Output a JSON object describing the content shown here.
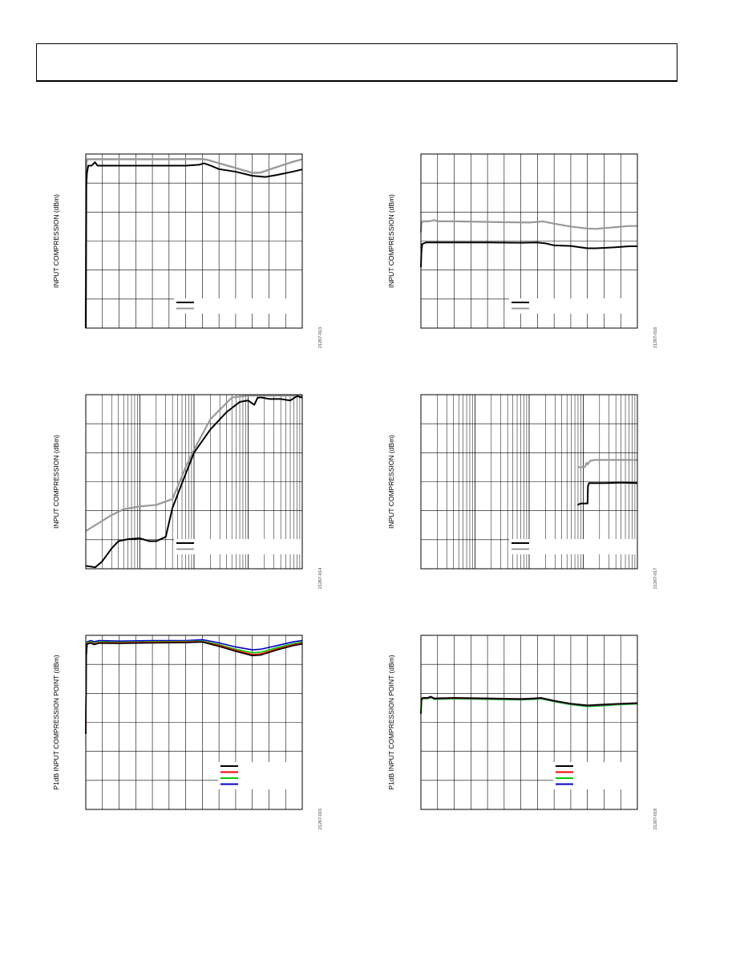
{
  "page": {
    "header_text": ""
  },
  "charts": [
    {
      "id": "c1",
      "figure_id": "21267-013",
      "ylabel": "INPUT COMPRESSION (dBm)",
      "chart_data": {
        "type": "line",
        "xscale": "linear",
        "grid": true,
        "x_divisions": 13,
        "y_divisions": 6,
        "xlim": [
          0,
          13
        ],
        "ylim": [
          0,
          6
        ],
        "legend": {
          "placement": "bottom-right",
          "colors": [
            "#000000",
            "#999999"
          ]
        },
        "series": [
          {
            "color": "#999999",
            "width": 2.4,
            "x": [
              0,
              0.03,
              0.08,
              0.4,
              1.5,
              3,
              5,
              6.9,
              7.3,
              7.9,
              9,
              10,
              10.5,
              11.3,
              12.5,
              13
            ],
            "y": [
              0,
              5.68,
              5.82,
              5.82,
              5.82,
              5.82,
              5.82,
              5.83,
              5.8,
              5.7,
              5.52,
              5.35,
              5.36,
              5.52,
              5.74,
              5.82
            ]
          },
          {
            "color": "#000000",
            "width": 2.0,
            "x": [
              0,
              0.03,
              0.07,
              0.15,
              0.35,
              0.55,
              0.7,
              0.9,
              1.5,
              3,
              5,
              6,
              6.8,
              7.1,
              7.5,
              8,
              9,
              10,
              10.8,
              11.5,
              12.5,
              13
            ],
            "y": [
              0,
              4.9,
              5.35,
              5.6,
              5.6,
              5.72,
              5.6,
              5.6,
              5.6,
              5.6,
              5.6,
              5.6,
              5.63,
              5.68,
              5.6,
              5.48,
              5.39,
              5.25,
              5.21,
              5.28,
              5.4,
              5.47
            ]
          }
        ]
      }
    },
    {
      "id": "c2",
      "figure_id": "21267-016",
      "ylabel": "INPUT COMPRESSION (dBm)",
      "chart_data": {
        "type": "line",
        "xscale": "linear",
        "grid": true,
        "x_divisions": 13,
        "y_divisions": 6,
        "xlim": [
          0,
          13
        ],
        "ylim": [
          0,
          6
        ],
        "legend": {
          "placement": "bottom-right",
          "colors": [
            "#000000",
            "#999999"
          ]
        },
        "series": [
          {
            "color": "#999999",
            "width": 2.2,
            "x": [
              0,
              0.03,
              0.1,
              0.5,
              0.8,
              1,
              2,
              4,
              5,
              6.5,
              7,
              7.3,
              8,
              9,
              10,
              10.5,
              11.5,
              12.5,
              13
            ],
            "y": [
              3.3,
              3.62,
              3.68,
              3.68,
              3.72,
              3.68,
              3.68,
              3.66,
              3.65,
              3.64,
              3.66,
              3.68,
              3.6,
              3.5,
              3.43,
              3.42,
              3.47,
              3.52,
              3.52
            ]
          },
          {
            "color": "#000000",
            "width": 2.0,
            "x": [
              0,
              0.03,
              0.08,
              0.3,
              0.8,
              2,
              4,
              6,
              7,
              7.5,
              8,
              9,
              10,
              10.5,
              11.5,
              12.5,
              13
            ],
            "y": [
              2.1,
              2.65,
              2.9,
              2.95,
              2.95,
              2.95,
              2.95,
              2.94,
              2.95,
              2.92,
              2.85,
              2.83,
              2.75,
              2.75,
              2.78,
              2.82,
              2.82
            ]
          }
        ]
      }
    },
    {
      "id": "c3",
      "figure_id": "21267-014",
      "ylabel": "INPUT COMPRESSION (dBm)",
      "chart_data": {
        "type": "line",
        "xscale": "log",
        "grid": true,
        "xlim": [
          1,
          10000
        ],
        "ylim": [
          0,
          6
        ],
        "y_divisions": 6,
        "legend": {
          "placement": "bottom-right",
          "colors": [
            "#000000",
            "#999999"
          ]
        },
        "series": [
          {
            "color": "#999999",
            "width": 2.2,
            "x": [
              1,
              3,
              5,
              10,
              20,
              40,
              70,
              100,
              200,
              500,
              1000,
              1500,
              2000,
              3000,
              5000,
              10000
            ],
            "y": [
              1.3,
              1.85,
              2.05,
              2.15,
              2.2,
              2.4,
              3.5,
              4.1,
              5.15,
              5.9,
              5.97,
              5.97,
              5.97,
              5.97,
              5.97,
              5.97
            ]
          },
          {
            "color": "#000000",
            "width": 2.0,
            "x": [
              1,
              1.5,
              2,
              3,
              4,
              6,
              10,
              15,
              20,
              30,
              40,
              60,
              100,
              200,
              400,
              700,
              1000,
              1300,
              1500,
              1800,
              2500,
              4000,
              6000,
              8000,
              10000
            ],
            "y": [
              0.1,
              0.05,
              0.25,
              0.7,
              0.95,
              1.02,
              1.05,
              0.95,
              0.95,
              1.1,
              2.1,
              2.95,
              4.0,
              4.8,
              5.4,
              5.75,
              5.8,
              5.65,
              5.9,
              5.9,
              5.85,
              5.85,
              5.8,
              5.95,
              5.9
            ]
          }
        ]
      }
    },
    {
      "id": "c4",
      "figure_id": "21267-017",
      "ylabel": "INPUT COMPRESSION (dBm)",
      "chart_data": {
        "type": "line",
        "xscale": "log",
        "grid": true,
        "xlim": [
          1,
          10000
        ],
        "ylim": [
          0,
          6
        ],
        "y_divisions": 6,
        "legend": {
          "placement": "bottom-right",
          "colors": [
            "#000000",
            "#999999"
          ]
        },
        "series": [
          {
            "color": "#999999",
            "width": 2.2,
            "x": [
              800,
              1050,
              1100,
              1150,
              1200,
              1350,
              1600,
              2500,
              5000,
              10000
            ],
            "y": [
              3.5,
              3.5,
              3.55,
              3.65,
              3.6,
              3.72,
              3.75,
              3.75,
              3.75,
              3.75
            ]
          },
          {
            "color": "#000000",
            "width": 2.0,
            "x": [
              780,
              900,
              1050,
              1200,
              1220,
              1280,
              1350,
              1500,
              2500,
              5000,
              10000
            ],
            "y": [
              2.2,
              2.25,
              2.25,
              2.25,
              2.85,
              2.95,
              2.95,
              2.95,
              2.95,
              2.97,
              2.95
            ]
          }
        ]
      }
    },
    {
      "id": "c5",
      "figure_id": "21267-015",
      "ylabel": "P1dB INPUT COMPRESSION POINT (dBm)",
      "chart_data": {
        "type": "line",
        "xscale": "linear",
        "grid": true,
        "x_divisions": 13,
        "y_divisions": 6,
        "xlim": [
          0,
          13
        ],
        "ylim": [
          0,
          6
        ],
        "legend": {
          "placement": "bottom-right",
          "colors": [
            "#000000",
            "#ff0000",
            "#00cc00",
            "#0000cc"
          ]
        },
        "series": [
          {
            "color": "#0000cc",
            "width": 1.6,
            "x": [
              0,
              0.03,
              0.08,
              0.3,
              0.5,
              0.8,
              2,
              4,
              6,
              7,
              8,
              9,
              10,
              10.5,
              11.5,
              12.5,
              13
            ],
            "y": [
              2.6,
              5.4,
              5.78,
              5.82,
              5.78,
              5.82,
              5.8,
              5.82,
              5.82,
              5.85,
              5.74,
              5.6,
              5.5,
              5.52,
              5.65,
              5.78,
              5.82
            ]
          },
          {
            "color": "#00cc00",
            "width": 1.6,
            "x": [
              0,
              0.03,
              0.08,
              0.3,
              0.5,
              0.8,
              2,
              4,
              6,
              7,
              8,
              9,
              10,
              10.5,
              11.5,
              12.5,
              13
            ],
            "y": [
              2.6,
              5.35,
              5.75,
              5.78,
              5.72,
              5.78,
              5.76,
              5.78,
              5.79,
              5.8,
              5.68,
              5.52,
              5.4,
              5.42,
              5.58,
              5.72,
              5.77
            ]
          },
          {
            "color": "#ff0000",
            "width": 1.6,
            "x": [
              0,
              0.03,
              0.08,
              0.3,
              0.5,
              0.8,
              2,
              4,
              6,
              7,
              8,
              9,
              10,
              10.5,
              11.5,
              12.5,
              13
            ],
            "y": [
              2.6,
              5.3,
              5.72,
              5.75,
              5.7,
              5.75,
              5.74,
              5.76,
              5.77,
              5.78,
              5.65,
              5.48,
              5.34,
              5.36,
              5.53,
              5.68,
              5.73
            ]
          },
          {
            "color": "#000000",
            "width": 1.6,
            "x": [
              0,
              0.03,
              0.08,
              0.3,
              0.5,
              0.8,
              2,
              4,
              6,
              7,
              8,
              9,
              10,
              10.5,
              11.5,
              12.5,
              13
            ],
            "y": [
              2.6,
              5.28,
              5.7,
              5.73,
              5.68,
              5.73,
              5.72,
              5.74,
              5.75,
              5.77,
              5.62,
              5.45,
              5.3,
              5.32,
              5.5,
              5.65,
              5.7
            ]
          }
        ]
      }
    },
    {
      "id": "c6",
      "figure_id": "21267-018",
      "ylabel": "P1dB INPUT COMPRESSION POINT (dBm)",
      "chart_data": {
        "type": "line",
        "xscale": "linear",
        "grid": true,
        "x_divisions": 13,
        "y_divisions": 6,
        "xlim": [
          0,
          13
        ],
        "ylim": [
          0,
          6
        ],
        "legend": {
          "placement": "bottom-right",
          "colors": [
            "#000000",
            "#ff0000",
            "#00cc00",
            "#0000cc"
          ]
        },
        "series": [
          {
            "color": "#00cc00",
            "width": 2.0,
            "x": [
              0,
              0.03,
              0.1,
              0.4,
              0.6,
              0.8,
              2,
              4,
              6,
              6.8,
              7.2,
              8,
              9,
              10,
              11,
              12,
              13
            ],
            "y": [
              3.3,
              3.75,
              3.82,
              3.82,
              3.86,
              3.8,
              3.82,
              3.8,
              3.78,
              3.8,
              3.82,
              3.72,
              3.62,
              3.55,
              3.58,
              3.62,
              3.64
            ]
          },
          {
            "color": "#0000cc",
            "width": 1.4,
            "x": [
              0,
              0.03,
              0.1,
              0.4,
              0.6,
              0.8,
              2,
              4,
              6,
              6.8,
              7.2,
              8,
              9,
              10,
              11,
              12,
              13
            ],
            "y": [
              3.3,
              3.76,
              3.83,
              3.83,
              3.87,
              3.81,
              3.83,
              3.81,
              3.79,
              3.81,
              3.83,
              3.73,
              3.63,
              3.57,
              3.6,
              3.63,
              3.65
            ]
          },
          {
            "color": "#ff0000",
            "width": 1.4,
            "x": [
              0,
              0.03,
              0.1,
              0.4,
              0.6,
              0.8,
              2,
              4,
              6,
              6.8,
              7.2,
              8,
              9,
              10,
              11,
              12,
              13
            ],
            "y": [
              3.3,
              3.77,
              3.84,
              3.84,
              3.88,
              3.82,
              3.84,
              3.82,
              3.8,
              3.82,
              3.84,
              3.74,
              3.64,
              3.58,
              3.61,
              3.64,
              3.66
            ]
          },
          {
            "color": "#000000",
            "width": 1.6,
            "x": [
              0,
              0.03,
              0.1,
              0.4,
              0.6,
              0.8,
              2,
              4,
              6,
              6.8,
              7.2,
              8,
              9,
              10,
              11,
              12,
              13
            ],
            "y": [
              3.3,
              3.78,
              3.85,
              3.85,
              3.89,
              3.83,
              3.85,
              3.83,
              3.81,
              3.83,
              3.85,
              3.75,
              3.65,
              3.59,
              3.62,
              3.65,
              3.67
            ]
          }
        ]
      }
    }
  ]
}
